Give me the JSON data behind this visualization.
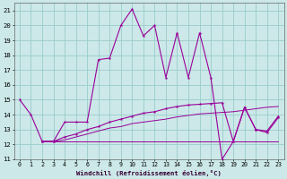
{
  "xlabel": "Windchill (Refroidissement éolien,°C)",
  "bg_color": "#cce8e8",
  "grid_color": "#99cccc",
  "line_color": "#990099",
  "xlim": [
    -0.5,
    23.5
  ],
  "ylim": [
    11,
    21.5
  ],
  "yticks": [
    11,
    12,
    13,
    14,
    15,
    16,
    17,
    18,
    19,
    20,
    21
  ],
  "xticks": [
    0,
    1,
    2,
    3,
    4,
    5,
    6,
    7,
    8,
    9,
    10,
    11,
    12,
    13,
    14,
    15,
    16,
    17,
    18,
    19,
    20,
    21,
    22,
    23
  ],
  "line1_x": [
    0,
    1,
    2,
    3,
    4,
    5,
    6,
    7,
    8,
    9,
    10,
    11,
    12,
    13,
    14,
    15,
    16,
    17,
    18,
    19,
    20,
    21,
    22,
    23
  ],
  "line1_y": [
    15.0,
    14.0,
    12.2,
    12.2,
    13.5,
    13.5,
    13.5,
    17.7,
    17.8,
    20.0,
    21.1,
    19.3,
    20.0,
    16.5,
    19.5,
    16.5,
    19.5,
    16.5,
    11.0,
    12.2,
    14.5,
    13.0,
    12.8,
    13.8
  ],
  "line2_x": [
    2,
    3,
    4,
    5,
    6,
    7,
    8,
    9,
    10,
    11,
    12,
    13,
    14,
    15,
    16,
    17,
    18,
    19,
    20,
    21,
    22,
    23
  ],
  "line2_y": [
    12.2,
    12.2,
    12.2,
    12.2,
    12.2,
    12.2,
    12.2,
    12.2,
    12.2,
    12.2,
    12.2,
    12.2,
    12.2,
    12.2,
    12.2,
    12.2,
    12.2,
    12.2,
    12.2,
    12.2,
    12.2,
    12.2
  ],
  "line3_x": [
    2,
    3,
    4,
    5,
    6,
    7,
    8,
    9,
    10,
    11,
    12,
    13,
    14,
    15,
    16,
    17,
    18,
    19,
    20,
    21,
    22,
    23
  ],
  "line3_y": [
    12.2,
    12.2,
    12.3,
    12.5,
    12.7,
    12.9,
    13.1,
    13.2,
    13.4,
    13.5,
    13.6,
    13.7,
    13.85,
    13.95,
    14.05,
    14.1,
    14.15,
    14.2,
    14.3,
    14.4,
    14.5,
    14.55
  ],
  "line4_x": [
    2,
    3,
    4,
    5,
    6,
    7,
    8,
    9,
    10,
    11,
    12,
    13,
    14,
    15,
    16,
    17,
    18,
    19,
    20,
    21,
    22,
    23
  ],
  "line4_y": [
    12.2,
    12.2,
    12.5,
    12.7,
    13.0,
    13.2,
    13.5,
    13.7,
    13.9,
    14.1,
    14.2,
    14.4,
    14.55,
    14.65,
    14.7,
    14.75,
    14.8,
    12.2,
    14.5,
    13.0,
    12.9,
    13.9
  ]
}
